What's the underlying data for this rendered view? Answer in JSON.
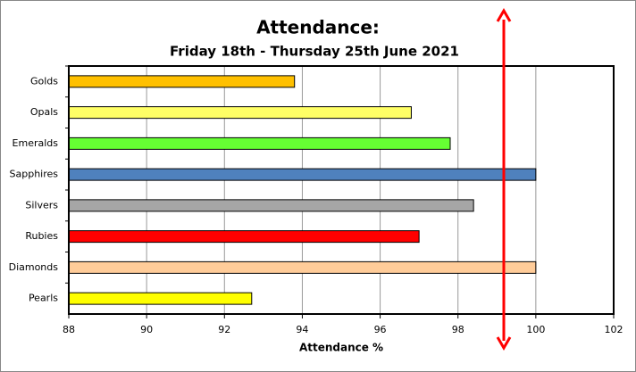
{
  "chart_data": {
    "type": "barh",
    "title": "Attendance:",
    "subtitle": "Friday 18th - Thursday 25th June 2021",
    "x_label": "Attendance %",
    "categories": [
      "Golds",
      "Opals",
      "Emeralds",
      "Sapphires",
      "Silvers",
      "Rubies",
      "Diamonds",
      "Pearls"
    ],
    "values": [
      93.8,
      96.8,
      97.8,
      100,
      98.4,
      97.0,
      100,
      92.7
    ],
    "colors": [
      "#ffc000",
      "#ffff66",
      "#66ff33",
      "#4f81bd",
      "#a6a6a6",
      "#ff0000",
      "#ffcc99",
      "#ffff00"
    ],
    "xlim": [
      88,
      102
    ],
    "xticks": [
      88,
      90,
      92,
      94,
      96,
      98,
      100,
      102
    ],
    "grid": true
  }
}
